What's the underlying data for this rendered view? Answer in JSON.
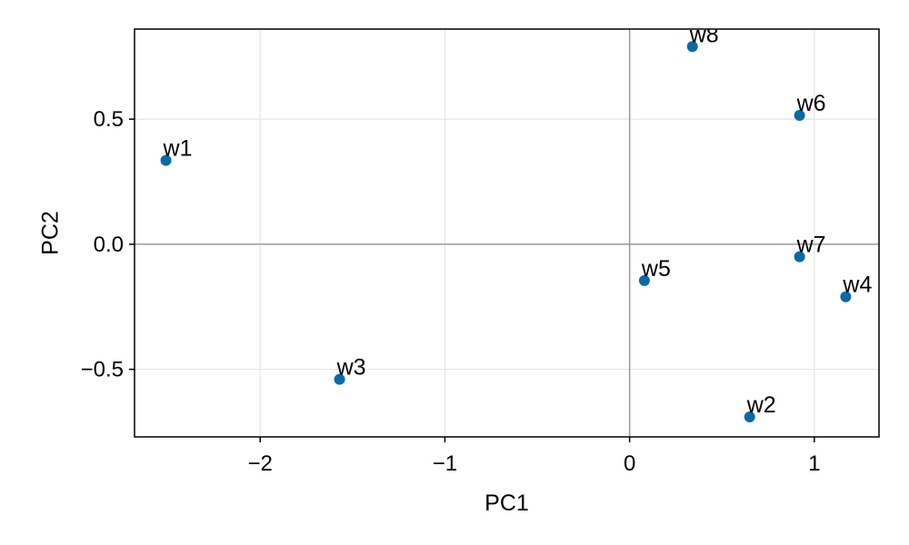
{
  "chart_data": {
    "type": "scatter",
    "xlabel": "PC1",
    "ylabel": "PC2",
    "xlim": [
      -2.68,
      1.35
    ],
    "ylim": [
      -0.77,
      0.86
    ],
    "x_ticks": [
      -2,
      -1,
      0,
      1
    ],
    "x_tick_labels": [
      "−2",
      "−1",
      "0",
      "1"
    ],
    "y_ticks": [
      -0.5,
      0.0,
      0.5
    ],
    "y_tick_labels": [
      "−0.5",
      "0.0",
      "0.5"
    ],
    "grid": true,
    "zero_lines": true,
    "point_color": "#0a6aa8",
    "points": [
      {
        "label": "w1",
        "x": -2.51,
        "y": 0.335
      },
      {
        "label": "w2",
        "x": 0.65,
        "y": -0.69
      },
      {
        "label": "w3",
        "x": -1.57,
        "y": -0.54
      },
      {
        "label": "w4",
        "x": 1.17,
        "y": -0.21
      },
      {
        "label": "w5",
        "x": 0.08,
        "y": -0.145
      },
      {
        "label": "w6",
        "x": 0.92,
        "y": 0.515
      },
      {
        "label": "w7",
        "x": 0.92,
        "y": -0.05
      },
      {
        "label": "w8",
        "x": 0.34,
        "y": 0.79
      }
    ]
  }
}
